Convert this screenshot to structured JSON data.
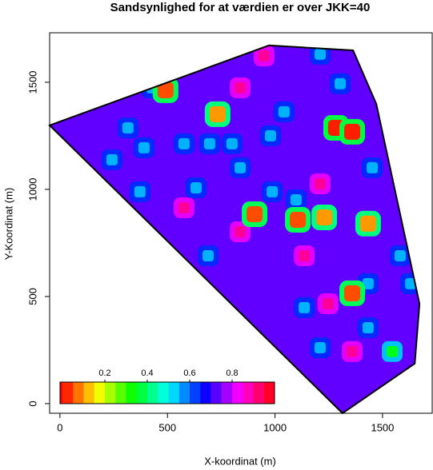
{
  "chart_data": {
    "type": "heatmap",
    "title": "Sandsynlighed for at værdien er over JKK=40",
    "x_label": "X-koordinat (m)",
    "y_label": "Y-Koordinat (m)",
    "xlim": [
      -48,
      1731
    ],
    "ylim": [
      -45,
      1731
    ],
    "xticks": [
      0,
      500,
      1000,
      1500
    ],
    "yticks": [
      0,
      500,
      1000,
      1500
    ],
    "boundary": {
      "x": [
        -48,
        972,
        1363,
        1471,
        1672,
        1650,
        1314
      ],
      "y": [
        1299,
        1672,
        1649,
        1399,
        466,
        187,
        -45
      ]
    },
    "background_value": 0.73,
    "spots": {
      "x": [
        949,
        838,
        838,
        1136,
        1247,
        1359,
        577,
        1210,
        316,
        391,
        242,
        577,
        696,
        800,
        633,
        1042,
        979,
        1210,
        1303,
        1452,
        1582,
        1631,
        1433,
        1136,
        1433,
        1210,
        372,
        987,
        1098,
        689,
        838,
        428,
        1545,
        491,
        733,
        1284,
        1359,
        905,
        1106,
        1229,
        1433,
        1359
      ],
      "y": [
        1623,
        1474,
        802,
        690,
        466,
        243,
        914,
        1026,
        1287,
        1194,
        1138,
        1213,
        1213,
        1213,
        1007,
        1362,
        1250,
        1631,
        1493,
        1101,
        690,
        560,
        560,
        448,
        354,
        261,
        989,
        989,
        951,
        690,
        1101,
        1474,
        243,
        1463,
        1351,
        1287,
        1269,
        884,
        858,
        869,
        840,
        515
      ],
      "values": [
        0.9,
        0.9,
        0.9,
        0.9,
        0.9,
        0.9,
        0.9,
        0.9,
        0.55,
        0.55,
        0.55,
        0.55,
        0.55,
        0.55,
        0.55,
        0.55,
        0.55,
        0.55,
        0.55,
        0.55,
        0.55,
        0.55,
        0.55,
        0.55,
        0.55,
        0.55,
        0.55,
        0.55,
        0.55,
        0.55,
        0.55,
        0.55,
        0.35,
        0.05,
        0.1,
        0.02,
        0.02,
        0.05,
        0.05,
        0.1,
        0.1,
        0.05
      ]
    },
    "colorbar": {
      "range": [
        0,
        1
      ],
      "steps": 20,
      "ticks": [
        0.2,
        0.4,
        0.6,
        0.8
      ]
    }
  }
}
